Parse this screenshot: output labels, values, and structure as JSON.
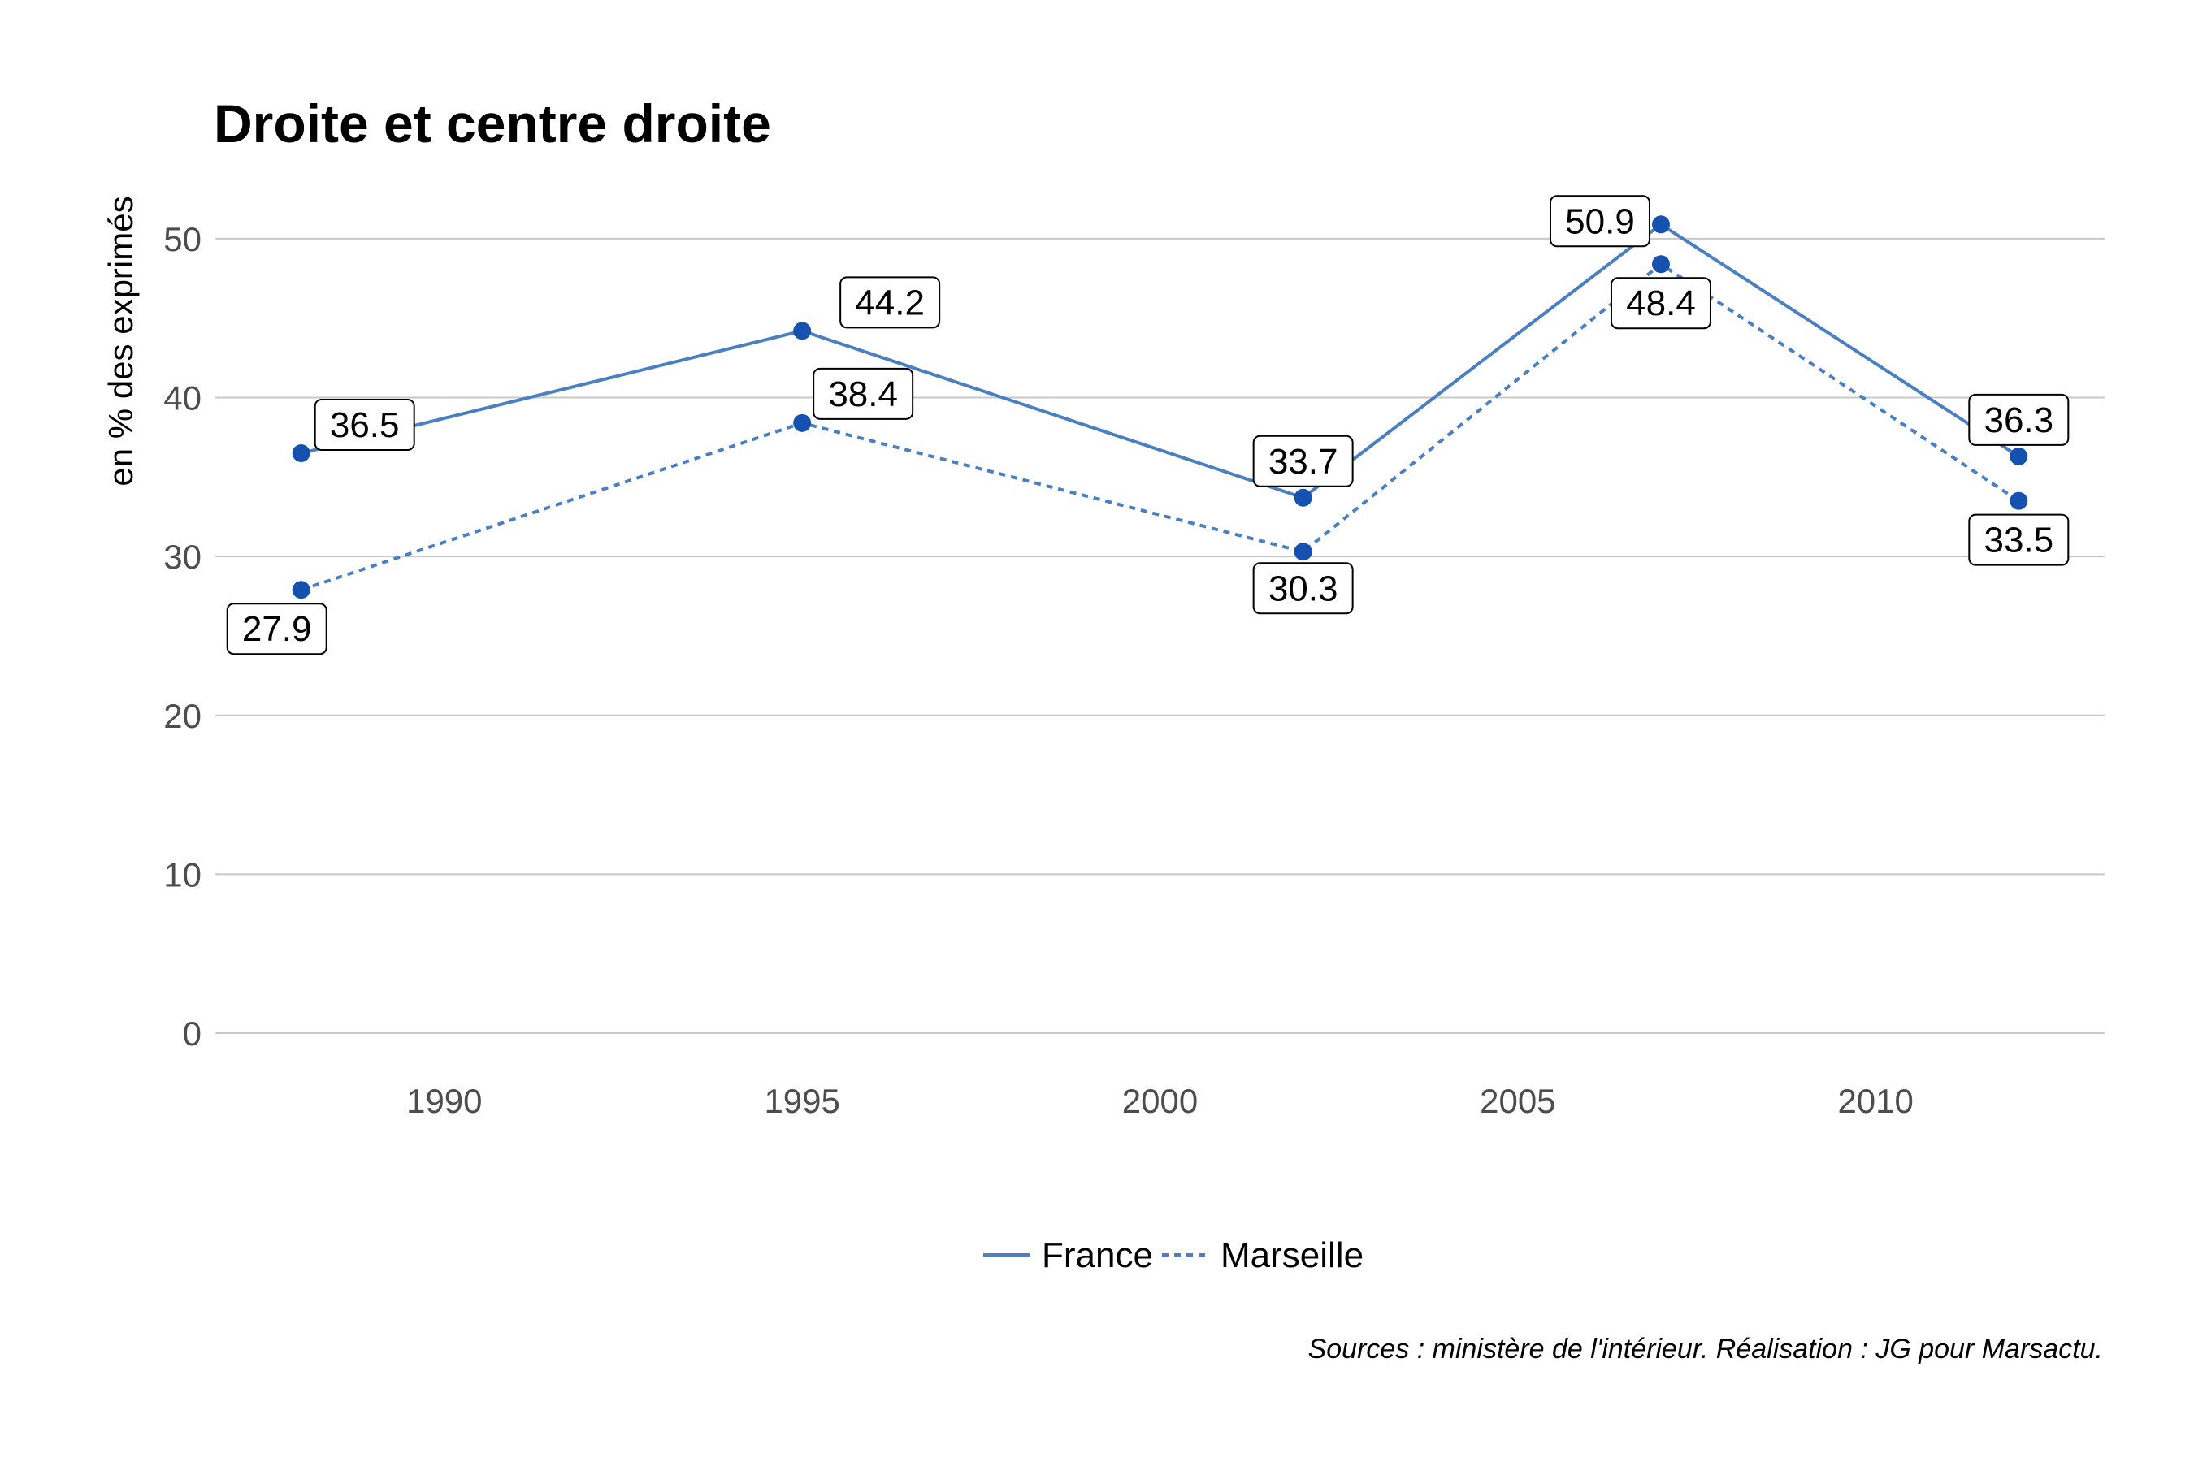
{
  "chart_data": {
    "type": "line",
    "title": "Droite et centre droite",
    "ylabel": "en % des exprimés",
    "xlabel": "",
    "x": [
      1988,
      1995,
      2002,
      2007,
      2012
    ],
    "xticks": [
      1990,
      1995,
      2000,
      2005,
      2010
    ],
    "xlim": [
      1986.8,
      2013.2
    ],
    "yticks": [
      0,
      10,
      20,
      30,
      40,
      50
    ],
    "ylim": [
      0,
      52.5
    ],
    "grid": "horizontal",
    "legend_position": "bottom",
    "series": [
      {
        "name": "France",
        "values": [
          36.5,
          44.2,
          33.7,
          50.9,
          36.3
        ],
        "labels": [
          "36.5",
          "44.2",
          "33.7",
          "50.9",
          "36.3"
        ],
        "line_style": "solid",
        "line_color": "#4a7fc1",
        "point_color": "#1552b0"
      },
      {
        "name": "Marseille",
        "values": [
          27.9,
          38.4,
          30.3,
          48.4,
          33.5
        ],
        "labels": [
          "27.9",
          "38.4",
          "30.3",
          "48.4",
          "33.5"
        ],
        "line_style": "dotted",
        "line_color": "#4a7fc1",
        "point_color": "#1552b0"
      }
    ],
    "source": "Sources : ministère de l'intérieur. Réalisation : JG pour Marsactu."
  }
}
